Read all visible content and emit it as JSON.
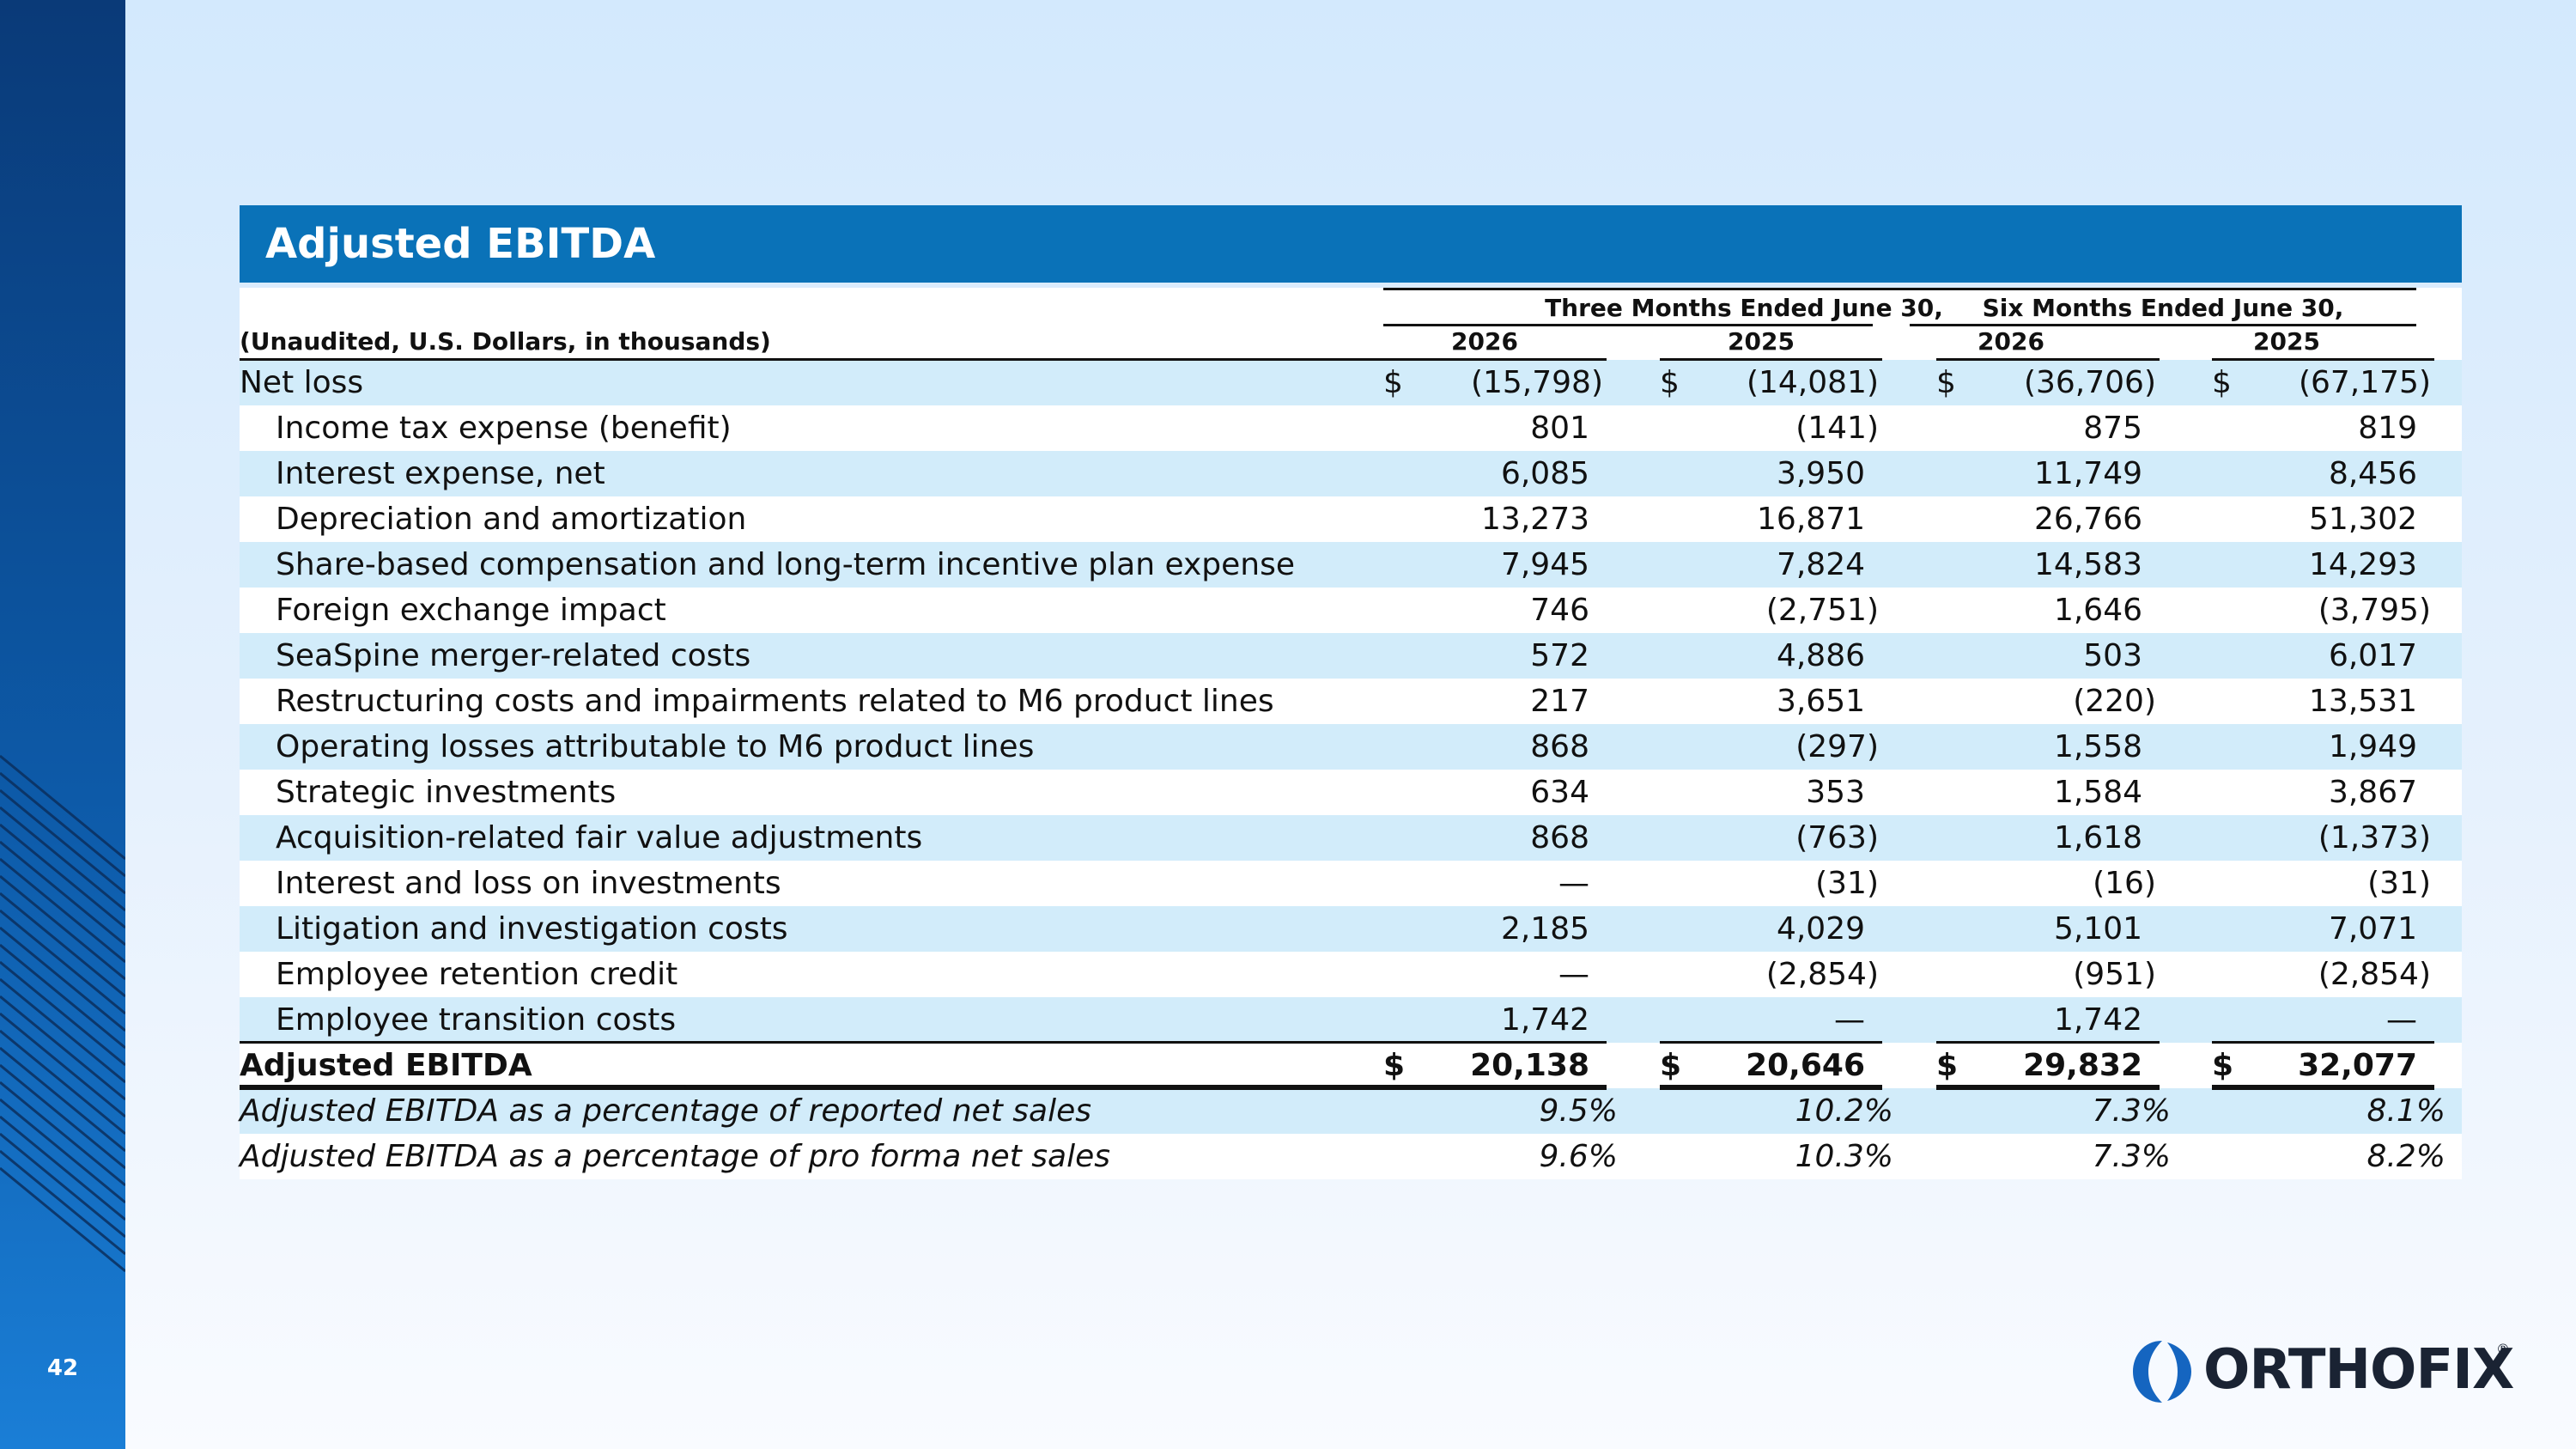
{
  "slide": {
    "page_number": "42"
  },
  "title": "Adjusted EBITDA",
  "header": {
    "group1": "Three Months Ended June 30,",
    "group2": "Six Months Ended June 30,",
    "units_label": "(Unaudited, U.S. Dollars, in thousands)",
    "years": [
      "2026",
      "2025",
      "2026",
      "2025"
    ]
  },
  "rows": [
    {
      "label": "Net loss",
      "values": [
        "(15,798)",
        "(14,081)",
        "(36,706)",
        "(67,175)"
      ],
      "dollar": true,
      "style": "normal"
    },
    {
      "label": "Income tax expense (benefit)",
      "values": [
        "801",
        "(141)",
        "875",
        "819"
      ],
      "style": "indent"
    },
    {
      "label": "Interest expense, net",
      "values": [
        "6,085",
        "3,950",
        "11,749",
        "8,456"
      ],
      "style": "indent"
    },
    {
      "label": "Depreciation and amortization",
      "values": [
        "13,273",
        "16,871",
        "26,766",
        "51,302"
      ],
      "style": "indent"
    },
    {
      "label": "Share-based compensation and long-term incentive plan expense",
      "values": [
        "7,945",
        "7,824",
        "14,583",
        "14,293"
      ],
      "style": "indent"
    },
    {
      "label": "Foreign exchange impact",
      "values": [
        "746",
        "(2,751)",
        "1,646",
        "(3,795)"
      ],
      "style": "indent"
    },
    {
      "label": "SeaSpine merger-related costs",
      "values": [
        "572",
        "4,886",
        "503",
        "6,017"
      ],
      "style": "indent"
    },
    {
      "label": "Restructuring costs and impairments related to M6 product lines",
      "values": [
        "217",
        "3,651",
        "(220)",
        "13,531"
      ],
      "style": "indent"
    },
    {
      "label": "Operating losses attributable to M6 product lines",
      "values": [
        "868",
        "(297)",
        "1,558",
        "1,949"
      ],
      "style": "indent"
    },
    {
      "label": "Strategic investments",
      "values": [
        "634",
        "353",
        "1,584",
        "3,867"
      ],
      "style": "indent"
    },
    {
      "label": "Acquisition-related fair value adjustments",
      "values": [
        "868",
        "(763)",
        "1,618",
        "(1,373)"
      ],
      "style": "indent"
    },
    {
      "label": "Interest and loss on investments",
      "values": [
        "—",
        "(31)",
        "(16)",
        "(31)"
      ],
      "style": "indent"
    },
    {
      "label": "Litigation and investigation costs",
      "values": [
        "2,185",
        "4,029",
        "5,101",
        "7,071"
      ],
      "style": "indent"
    },
    {
      "label": "Employee retention credit",
      "values": [
        "—",
        "(2,854)",
        "(951)",
        "(2,854)"
      ],
      "style": "indent"
    },
    {
      "label": "Employee transition costs",
      "values": [
        "1,742",
        "—",
        "1,742",
        "—"
      ],
      "style": "indent"
    },
    {
      "label": "Adjusted EBITDA",
      "values": [
        "20,138",
        "20,646",
        "29,832",
        "32,077"
      ],
      "dollar": true,
      "style": "bold"
    },
    {
      "label": "Adjusted EBITDA as a percentage of reported net sales",
      "values": [
        "9.5%",
        "10.2%",
        "7.3%",
        "8.1%"
      ],
      "style": "italic"
    },
    {
      "label": "Adjusted EBITDA as a percentage of pro forma net sales",
      "values": [
        "9.6%",
        "10.3%",
        "7.3%",
        "8.2%"
      ],
      "style": "italic"
    }
  ],
  "dollar_sign": "$",
  "logo": {
    "text": "ORTHOFIX",
    "registered": "®"
  },
  "colors": {
    "title_bar": "#0a72b8",
    "row_shade": "#d2ecfa",
    "sidebar_top": "#0a3a78",
    "sidebar_bottom": "#1a7ed6",
    "logo_blue": "#1565c0",
    "logo_text": "#1a2333"
  }
}
